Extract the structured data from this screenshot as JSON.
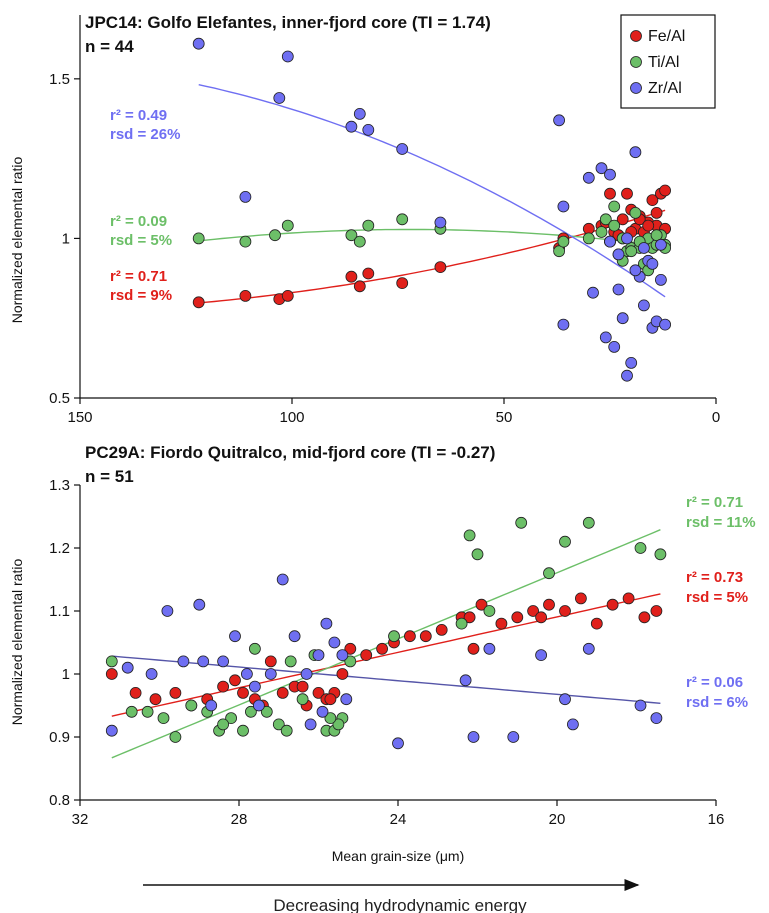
{
  "colors": {
    "fe": "#e0201b",
    "ti": "#6cbf68",
    "zr": "#6f6ff2",
    "zr_fit2": "#5555a8"
  },
  "legend": [
    "Fe/Al",
    "Ti/Al",
    "Zr/Al"
  ],
  "arrow_label": "Decreasing hydrodynamic energy",
  "chart_data": [
    {
      "type": "scatter",
      "title": "JPC14: Golfo Elefantes, inner-fjord core (TI = 1.74)",
      "subtitle": "n = 44",
      "xlabel": "",
      "ylabel": "Normalized elemental ratio",
      "xlim": [
        150,
        0
      ],
      "ylim": [
        0.5,
        1.7
      ],
      "xticks": [
        "150",
        "100",
        "50",
        "0"
      ],
      "yticks": [
        "0.5",
        "1",
        "1.5"
      ],
      "series": [
        {
          "name": "Fe/Al",
          "key": "fe",
          "stat_r2": "r² = 0.71",
          "stat_rsd": "rsd = 9%",
          "x": [
            122,
            111,
            103,
            101,
            86,
            84,
            82,
            74,
            65,
            37,
            36,
            30,
            27,
            26,
            25,
            24,
            23,
            22,
            21,
            20,
            19,
            18,
            17,
            16,
            15,
            14,
            13,
            12,
            25,
            22,
            20,
            18,
            16,
            14,
            12
          ],
          "y": [
            0.8,
            0.82,
            0.81,
            0.82,
            0.88,
            0.85,
            0.89,
            0.86,
            0.91,
            0.97,
            1.0,
            1.03,
            1.04,
            1.05,
            1.14,
            1.02,
            1.01,
            1.06,
            1.14,
            1.09,
            1.03,
            1.07,
            1.02,
            1.05,
            1.12,
            1.04,
            1.14,
            1.15,
            0.99,
            1.0,
            1.02,
            1.06,
            1.04,
            1.08,
            1.03
          ]
        },
        {
          "name": "Ti/Al",
          "key": "ti",
          "stat_r2": "r² = 0.09",
          "stat_rsd": "rsd = 5%",
          "x": [
            122,
            111,
            104,
            101,
            86,
            84,
            82,
            74,
            65,
            37,
            36,
            30,
            27,
            26,
            25,
            24,
            23,
            22,
            21,
            20,
            19,
            18,
            17,
            16,
            15,
            14,
            13,
            12,
            24,
            22,
            20,
            18,
            16,
            14,
            12
          ],
          "y": [
            1.0,
            0.99,
            1.01,
            1.04,
            1.01,
            0.99,
            1.04,
            1.06,
            1.03,
            0.96,
            0.99,
            1.0,
            1.02,
            1.06,
            0.99,
            1.1,
            0.95,
            1.0,
            0.96,
            0.97,
            1.08,
            0.97,
            0.92,
            1.0,
            0.97,
            0.98,
            1.01,
            0.98,
            1.04,
            0.93,
            0.96,
            0.99,
            0.9,
            1.01,
            0.97
          ]
        },
        {
          "name": "Zr/Al",
          "key": "zr",
          "stat_r2": "r² = 0.49",
          "stat_rsd": "rsd = 26%",
          "x": [
            122,
            111,
            103,
            101,
            86,
            84,
            82,
            74,
            65,
            37,
            36,
            36,
            30,
            29,
            27,
            26,
            25,
            24,
            23,
            22,
            21,
            20,
            19,
            18,
            17,
            16,
            15,
            14,
            13,
            12,
            25,
            23,
            21,
            19,
            17,
            15,
            13
          ],
          "y": [
            1.61,
            1.13,
            1.44,
            1.57,
            1.35,
            1.39,
            1.34,
            1.28,
            1.05,
            1.37,
            1.1,
            0.73,
            1.19,
            0.83,
            1.22,
            0.69,
            1.2,
            0.66,
            0.84,
            0.75,
            0.57,
            0.61,
            1.27,
            0.88,
            0.79,
            0.93,
            0.72,
            0.74,
            0.87,
            0.73,
            0.99,
            0.95,
            1.0,
            0.9,
            0.97,
            0.92,
            0.98
          ]
        }
      ]
    },
    {
      "type": "scatter",
      "title": "PC29A: Fiordo Quitralco, mid-fjord core (TI = -0.27)",
      "subtitle": "n = 51",
      "xlabel": "Mean grain-size (μm)",
      "ylabel": "Normalized elemental ratio",
      "xlim": [
        32,
        16
      ],
      "ylim": [
        0.8,
        1.3
      ],
      "xticks": [
        "32",
        "28",
        "24",
        "20",
        "16"
      ],
      "yticks": [
        "0.8",
        "0.9",
        "1",
        "1.1",
        "1.2",
        "1.3"
      ],
      "series": [
        {
          "name": "Fe/Al",
          "key": "fe",
          "stat_r2": "r² = 0.73",
          "stat_rsd": "rsd = 5%",
          "x": [
            31.2,
            30.6,
            30.1,
            29.6,
            29.2,
            28.8,
            28.4,
            28.1,
            27.9,
            27.6,
            27.2,
            26.9,
            26.6,
            26.3,
            26.0,
            25.8,
            25.6,
            25.4,
            25.2,
            24.8,
            24.4,
            24.1,
            23.7,
            23.3,
            22.9,
            22.4,
            22.1,
            21.9,
            21.4,
            21.0,
            20.6,
            20.2,
            19.8,
            19.4,
            19.0,
            18.6,
            18.2,
            17.8,
            17.5,
            27.4,
            26.4,
            25.7,
            22.2,
            20.4
          ],
          "y": [
            1.0,
            0.97,
            0.96,
            0.97,
            0.95,
            0.96,
            0.98,
            0.99,
            0.97,
            0.96,
            1.02,
            0.97,
            0.98,
            0.95,
            0.97,
            0.96,
            0.97,
            1.0,
            1.04,
            1.03,
            1.04,
            1.05,
            1.06,
            1.06,
            1.07,
            1.09,
            1.04,
            1.11,
            1.08,
            1.09,
            1.1,
            1.11,
            1.1,
            1.12,
            1.08,
            1.11,
            1.12,
            1.09,
            1.1,
            0.95,
            0.98,
            0.96,
            1.09,
            1.09
          ],
          "plot_mask": "first39_then_extra"
        },
        {
          "name": "Ti/Al",
          "key": "ti",
          "stat_r2": "r² = 0.71",
          "stat_rsd": "rsd = 11%",
          "x": [
            31.2,
            30.7,
            30.3,
            29.9,
            29.6,
            29.2,
            28.8,
            28.5,
            28.2,
            27.9,
            27.6,
            27.3,
            27.0,
            26.7,
            26.4,
            26.1,
            25.8,
            25.6,
            25.4,
            25.2,
            24.1,
            22.4,
            22.2,
            22.0,
            21.7,
            20.9,
            20.2,
            19.8,
            19.2,
            17.9,
            17.4,
            28.4,
            27.7,
            26.8,
            25.5,
            25.7
          ],
          "y": [
            1.02,
            0.94,
            0.94,
            0.93,
            0.9,
            0.95,
            0.94,
            0.91,
            0.93,
            0.91,
            1.04,
            0.94,
            0.92,
            1.02,
            0.96,
            1.03,
            0.91,
            0.91,
            0.93,
            1.02,
            1.06,
            1.08,
            1.22,
            1.19,
            1.1,
            1.24,
            1.16,
            1.21,
            1.24,
            1.2,
            1.19,
            0.92,
            0.94,
            0.91,
            0.92,
            0.93
          ]
        },
        {
          "name": "Zr/Al",
          "key": "zr",
          "stat_r2": "r² = 0.06",
          "stat_rsd": "rsd = 6%",
          "x": [
            31.2,
            30.8,
            30.2,
            29.8,
            29.4,
            29.0,
            28.7,
            28.4,
            28.1,
            27.8,
            27.5,
            27.2,
            26.9,
            26.6,
            26.3,
            26.0,
            25.8,
            25.6,
            25.4,
            25.3,
            24.0,
            22.3,
            22.1,
            21.7,
            21.1,
            20.4,
            19.8,
            19.6,
            19.2,
            17.9,
            17.5,
            28.9,
            27.6,
            26.2,
            25.9
          ],
          "y": [
            0.91,
            1.01,
            1.0,
            1.1,
            1.02,
            1.11,
            0.95,
            1.02,
            1.06,
            1.0,
            0.95,
            1.0,
            1.15,
            1.06,
            1.0,
            1.03,
            1.08,
            1.05,
            1.03,
            0.96,
            0.89,
            0.99,
            0.9,
            1.04,
            0.9,
            1.03,
            0.96,
            0.92,
            1.04,
            0.95,
            0.93,
            1.02,
            0.98,
            0.92,
            0.94
          ]
        }
      ]
    }
  ]
}
